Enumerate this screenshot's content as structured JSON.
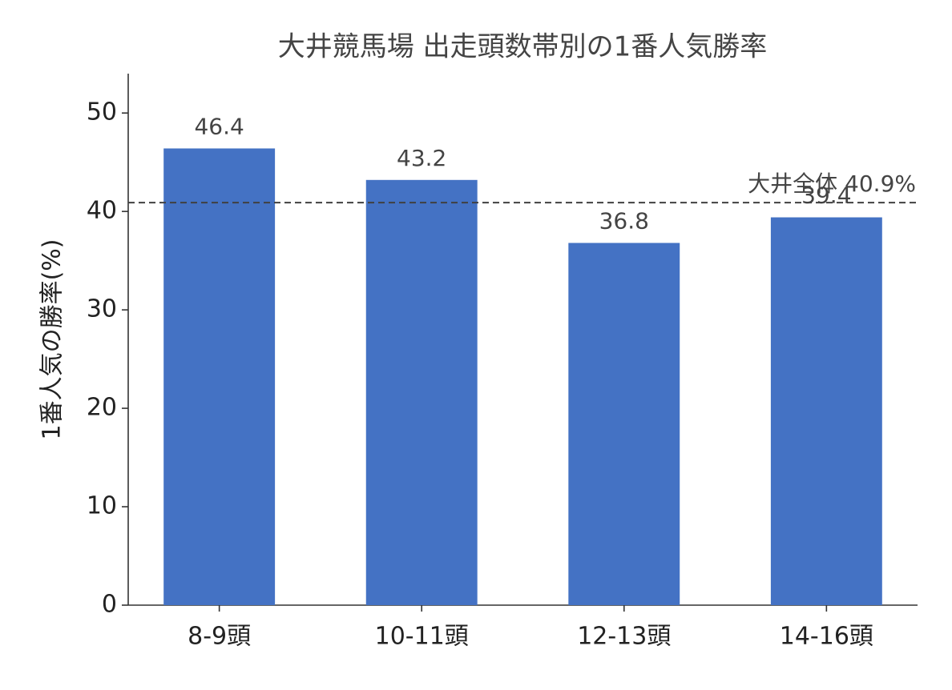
{
  "chart_data": {
    "type": "bar",
    "title": "大井競馬場 出走頭数帯別の1番人気勝率",
    "y_label": "1番人気の勝率(%)",
    "categories": [
      "8-9頭",
      "10-11頭",
      "12-13頭",
      "14-16頭"
    ],
    "values": [
      46.4,
      43.2,
      36.8,
      39.4
    ],
    "color": "#4472c4",
    "ylim": [
      0,
      54
    ],
    "yticks": [
      0,
      10,
      20,
      30,
      40,
      50
    ],
    "reference_line": {
      "value": 40.9,
      "label": "大井全体 40.9%",
      "color": "#404040"
    },
    "grid": false
  }
}
